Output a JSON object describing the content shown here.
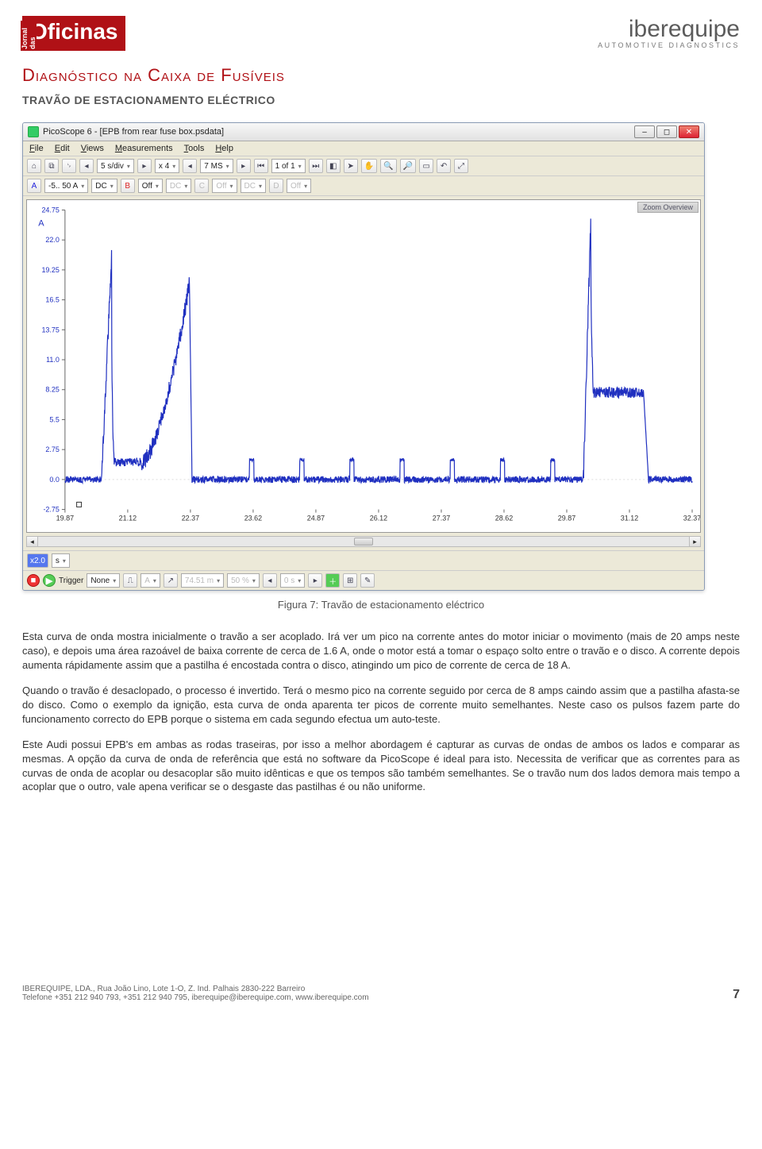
{
  "header": {
    "logo_left_small": "Jornal das",
    "logo_left_main": "Oficinas",
    "logo_right_brand": "iberequipe",
    "logo_right_tag": "AUTOMOTIVE DIAGNOSTICS"
  },
  "titles": {
    "doc_title": "Diagnóstico na Caixa de Fusíveis",
    "sub_title": "TRAVÃO DE ESTACIONAMENTO ELÉCTRICO"
  },
  "scope": {
    "window_title": "PicoScope 6 - [EPB from rear fuse box.psdata]",
    "menu": {
      "file": "File",
      "edit": "Edit",
      "views": "Views",
      "measurements": "Measurements",
      "tools": "Tools",
      "help": "Help"
    },
    "toolbar1": {
      "timebase": "5 s/div",
      "x": "x 4",
      "samples": "7 MS",
      "page": "1 of 1"
    },
    "toolbar2": {
      "chA": "A",
      "chA_range": "-5.. 50 A",
      "chA_coupling": "DC",
      "chB_off": "Off",
      "chC_coupling": "DC",
      "chC_off": "Off",
      "chD_coupling": "DC",
      "chD_off": "Off"
    },
    "zoom_label": "Zoom Overview",
    "scrollbar_unit_prefix": "x2.0",
    "scrollbar_unit": "s",
    "bottombar": {
      "trigger_label": "Trigger",
      "trigger_mode": "None",
      "ch": "A",
      "level": "74.51 m",
      "pct": "50 %",
      "time": "0 s"
    }
  },
  "chart": {
    "type": "line",
    "background_color": "#ffffff",
    "axis_color": "#666666",
    "label_fontsize": 9,
    "tick_fontsize": 9,
    "line_color": "#2030c0",
    "line_width": 1.2,
    "y_unit": "A",
    "y_min": -2.75,
    "y_max": 24.75,
    "y_ticks": [
      24.75,
      22.0,
      19.25,
      16.5,
      13.75,
      11.0,
      8.25,
      5.5,
      2.75,
      0.0,
      -2.75
    ],
    "y_tick_labels": [
      "24.75",
      "22.0",
      "19.25",
      "16.5",
      "13.75",
      "11.0",
      "8.25",
      "5.5",
      "2.75",
      "0.0",
      "-2.75"
    ],
    "x_min": 19.87,
    "x_max": 32.37,
    "x_ticks": [
      19.87,
      21.12,
      22.37,
      23.62,
      24.87,
      26.12,
      27.37,
      28.62,
      29.87,
      31.12,
      32.37
    ],
    "x_tick_labels": [
      "19.87",
      "21.12",
      "22.37",
      "23.62",
      "24.87",
      "26.12",
      "27.37",
      "28.62",
      "29.87",
      "31.12",
      "32.37"
    ],
    "series": {
      "baseline_noise_amp": 0.6,
      "events": [
        {
          "type": "apply",
          "t_start": 20.6,
          "t_rise_peak": 20.8,
          "peak": 20.5,
          "t_decay_start": 20.85,
          "plateau": 1.6,
          "t_end": 22.2,
          "ramp_t0": 21.4,
          "ramp_t1": 22.35,
          "ramp_peak": 18.0,
          "drop_t": 22.4
        },
        {
          "type": "pulse",
          "t": 23.55,
          "h": 1.8,
          "w": 0.08
        },
        {
          "type": "pulse",
          "t": 24.55,
          "h": 1.8,
          "w": 0.08
        },
        {
          "type": "pulse",
          "t": 25.55,
          "h": 1.8,
          "w": 0.08
        },
        {
          "type": "pulse",
          "t": 26.55,
          "h": 1.8,
          "w": 0.08
        },
        {
          "type": "pulse",
          "t": 27.55,
          "h": 1.8,
          "w": 0.08
        },
        {
          "type": "pulse",
          "t": 28.55,
          "h": 1.8,
          "w": 0.08
        },
        {
          "type": "pulse",
          "t": 29.55,
          "h": 1.8,
          "w": 0.08
        },
        {
          "type": "release",
          "t0": 30.2,
          "peak": 23.5,
          "t_peak": 30.35,
          "t_plateau0": 30.4,
          "plateau": 8.0,
          "t_plateau1": 31.4,
          "t_end": 31.5
        }
      ]
    }
  },
  "caption": "Figura 7: Travão de estacionamento eléctrico",
  "paragraphs": {
    "p1": "Esta curva de onda mostra inicialmente o travão a ser acoplado. Irá ver um pico na corrente antes do motor iniciar o movimento (mais de 20 amps neste caso), e depois uma área razoável de baixa corrente de cerca de 1.6 A, onde o motor está a tomar o espaço solto entre o travão e o disco. A corrente depois aumenta rápidamente assim que a pastilha é encostada contra o disco, atingindo um pico de corrente de cerca de 18 A.",
    "p2": "Quando o travão é desaclopado, o processo é invertido. Terá o mesmo pico na corrente seguido por cerca de 8 amps caindo assim que a pastilha afasta-se do disco. Como o exemplo da ignição, esta curva de onda aparenta ter picos de corrente muito semelhantes. Neste caso os pulsos fazem parte do funcionamento correcto do EPB porque o sistema em cada segundo efectua um auto-teste.",
    "p3": "Este Audi possui EPB's em ambas as rodas traseiras, por isso a melhor abordagem é capturar as curvas de ondas de ambos os lados e comparar as mesmas. A opção da curva de onda de referência que está no software da PicoScope é ideal para isto. Necessita de verificar que as correntes para as curvas de onda de acoplar ou desacoplar são muito idênticas e que os tempos são também semelhantes. Se o travão num dos lados demora mais tempo a acoplar que o outro, vale apena verificar se o desgaste das pastilhas é ou não uniforme."
  },
  "footer": {
    "line1": "IBEREQUIPE, LDA., Rua João Lino, Lote 1-O, Z. Ind. Palhais 2830-222 Barreiro",
    "line2": "Telefone +351 212 940 793, +351 212 940 795, iberequipe@iberequipe.com, www.iberequipe.com",
    "page": "7"
  }
}
